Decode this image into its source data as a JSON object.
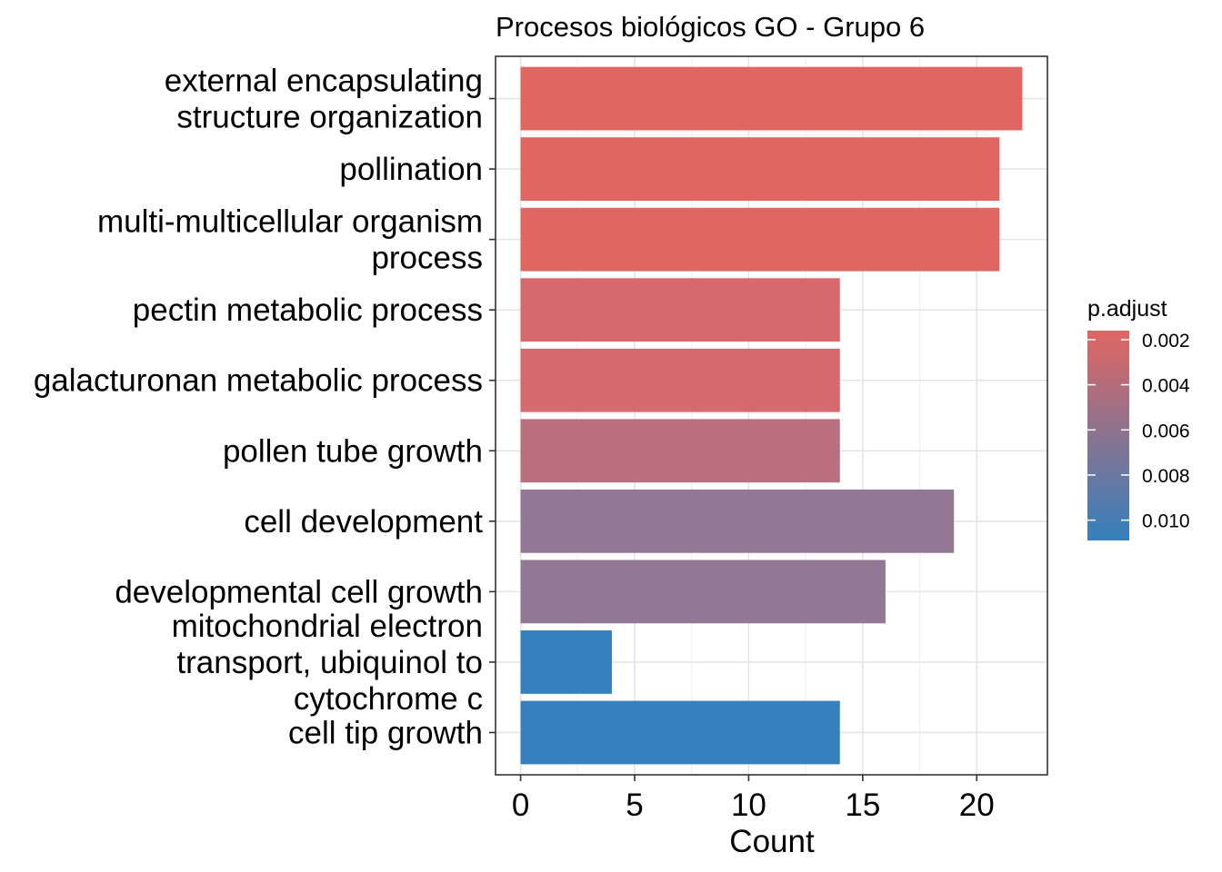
{
  "chart_data": {
    "type": "bar",
    "orientation": "horizontal",
    "title": "Procesos biológicos GO - Grupo 6",
    "xlabel": "Count",
    "ylabel": "",
    "xlim": [
      -1.1,
      23.1
    ],
    "xticks": [
      0,
      5,
      10,
      15,
      20
    ],
    "grid": true,
    "categories": [
      [
        "external encapsulating",
        "structure organization"
      ],
      [
        "pollination"
      ],
      [
        "multi-multicellular organism",
        "process"
      ],
      [
        "pectin metabolic process"
      ],
      [
        "galacturonan metabolic process"
      ],
      [
        "pollen tube growth"
      ],
      [
        "cell development"
      ],
      [
        "developmental cell growth"
      ],
      [
        "mitochondrial electron",
        "transport, ubiquinol to",
        "cytochrome c"
      ],
      [
        "cell tip growth"
      ]
    ],
    "values": [
      22,
      21,
      21,
      14,
      14,
      14,
      19,
      16,
      4,
      14
    ],
    "p_adjust": [
      0.0016,
      0.00165,
      0.00165,
      0.00355,
      0.0036,
      0.0048,
      0.00745,
      0.00745,
      0.0109,
      0.0109
    ],
    "colors": [
      "#E06663",
      "#E06663",
      "#E06663",
      "#D6686E",
      "#D6686E",
      "#BA6F7E",
      "#927894",
      "#927894",
      "#3580BD",
      "#3580BD"
    ],
    "legend": {
      "title": "p.adjust",
      "position": "right",
      "ticks": [
        "0.002",
        "0.004",
        "0.006",
        "0.008",
        "0.010"
      ],
      "tick_values": [
        0.002,
        0.004,
        0.006,
        0.008,
        0.01
      ],
      "range": [
        0.0016,
        0.0109
      ],
      "color_low": "#E06663",
      "color_high": "#3580BD"
    }
  }
}
